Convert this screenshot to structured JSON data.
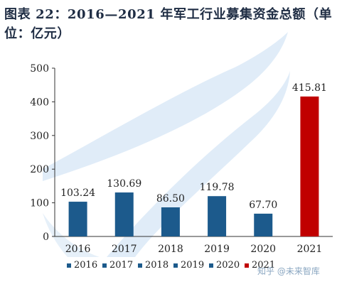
{
  "chart_data": {
    "type": "bar",
    "title": "图表 22：2016—2021 年军工行业募集资金总额（单位：亿元）",
    "xlabel": "",
    "ylabel": "",
    "categories": [
      "2016",
      "2017",
      "2018",
      "2019",
      "2020",
      "2021"
    ],
    "values": [
      103.24,
      130.69,
      86.5,
      119.78,
      67.7,
      415.81
    ],
    "value_labels": [
      "103.24",
      "130.69",
      "86.50",
      "119.78",
      "67.70",
      "415.81"
    ],
    "bar_colors": [
      "#1c5a8c",
      "#1c5a8c",
      "#1c5a8c",
      "#1c5a8c",
      "#1c5a8c",
      "#c00000"
    ],
    "legend": [
      "2016",
      "2017",
      "2018",
      "2019",
      "2020",
      "2021"
    ],
    "legend_position": "bottom",
    "ylim": [
      0,
      500
    ],
    "yticks": [
      "0",
      "100",
      "200",
      "300",
      "400",
      "500"
    ],
    "grid": false
  },
  "watermark": "知乎 @未来智库",
  "colors": {
    "title": "#1f2d44",
    "axis": "#333333",
    "background_swoosh": "#d6e6f5",
    "series_blue": "#1c5a8c",
    "series_red": "#c00000"
  }
}
